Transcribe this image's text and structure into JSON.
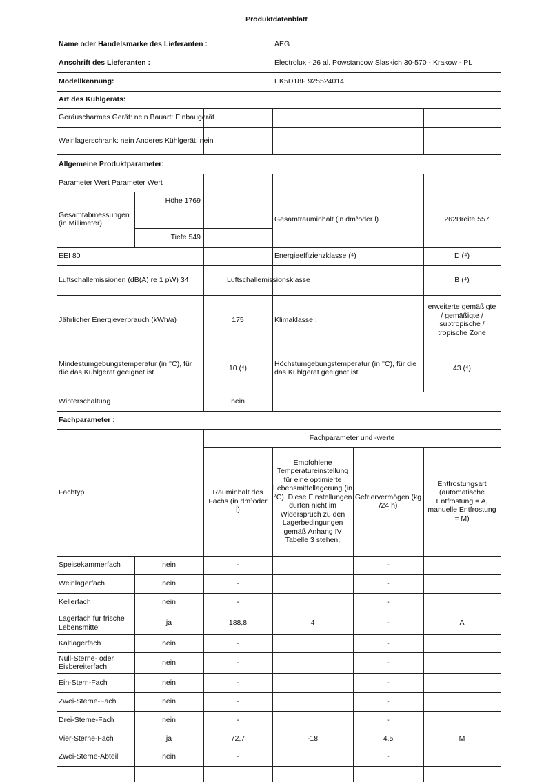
{
  "title": "Produktdatenblatt",
  "supplier": {
    "name_label": "Name oder Handelsmarke des Lieferanten :",
    "name_value": "AEG",
    "address_label": "Anschrift des Lieferanten :",
    "address_value": "Electrolux - 26 al. Powstancow Slaskich 30-570 - Krakow - PL",
    "model_label": "Modellkennung:",
    "model_value": "EK5D18F 925524014"
  },
  "type": {
    "section": "Art des Kühlgeräts:",
    "row1": "Geräuscharmes Gerät: nein Bauart: Einbaugerät",
    "row2": "Weinlagerschrank: nein Anderes Kühlgerät: nein"
  },
  "general": {
    "section": "Allgemeine Produktparameter:",
    "header": "Parameter Wert Parameter Wert",
    "dims_label": "Gesamtabmessungen (in Millimeter)",
    "height": "Höhe 1769",
    "depth": "Tiefe 549",
    "volume_label": "Gesamtrauminhalt (in dm³oder l)",
    "volume_value": "262Breite 557",
    "eei": "EEI 80",
    "eclass_label": "Energieeffizienzklasse (⁴)",
    "eclass_value": "D (⁴)",
    "noise": "Luftschallemissionen (dB(A) re 1 pW) 34",
    "noise_class_label": "Luftschallemissionsklasse",
    "noise_class_value": "B (⁴)",
    "energy_label": "Jährlicher Energieverbrauch (kWh/a)",
    "energy_value": "175",
    "climate_label": "Klimaklasse :",
    "climate_value": "erweiterte gemäßigte / gemäßigte / subtropische / tropische Zone",
    "min_temp_label": "Mindestumgebungstemperatur (in °C), für die das Kühlgerät geeignet ist",
    "min_temp_value": "10 (⁴)",
    "max_temp_label": "Höchstumgebungstemperatur (in °C), für die das Kühlgerät geeignet ist",
    "max_temp_value": "43 (⁴)",
    "winter_label": "Winterschaltung",
    "winter_value": "nein"
  },
  "compartments": {
    "section": "Fachparameter :",
    "group_header": "Fachparameter und -werte",
    "col_type": "Fachtyp",
    "col_volume": "Rauminhalt des Fachs (in dm³oder l)",
    "col_temp": "Empfohlene Temperatureinstellung für eine optimierte Lebensmittellagerung (in °C). Diese Einstellungen dürfen nicht im Widerspruch zu den Lagerbedingungen gemäß Anhang IV Tabelle 3 stehen;",
    "col_freeze": "Gefriervermögen (kg /24 h)",
    "col_defrost": "Entfrostungsart (automatische Entfrostung = A, manuelle Entfrostung = M)",
    "rows": [
      {
        "name": "Speisekammerfach",
        "present": "nein",
        "volume": "-",
        "temp": "",
        "freeze": "-",
        "defrost": ""
      },
      {
        "name": "Weinlagerfach",
        "present": "nein",
        "volume": "-",
        "temp": "",
        "freeze": "-",
        "defrost": ""
      },
      {
        "name": "Kellerfach",
        "present": "nein",
        "volume": "-",
        "temp": "",
        "freeze": "-",
        "defrost": ""
      },
      {
        "name": "Lagerfach für frische Lebensmittel",
        "present": "ja",
        "volume": "188,8",
        "temp": "4",
        "freeze": "-",
        "defrost": "A"
      },
      {
        "name": "Kaltlagerfach",
        "present": "nein",
        "volume": "-",
        "temp": "",
        "freeze": "-",
        "defrost": ""
      },
      {
        "name": "Null-Sterne- oder Eisbereiterfach",
        "present": "nein",
        "volume": "-",
        "temp": "",
        "freeze": "-",
        "defrost": ""
      },
      {
        "name": "Ein-Stern-Fach",
        "present": "nein",
        "volume": "-",
        "temp": "",
        "freeze": "-",
        "defrost": ""
      },
      {
        "name": "Zwei-Sterne-Fach",
        "present": "nein",
        "volume": "-",
        "temp": "",
        "freeze": "-",
        "defrost": ""
      },
      {
        "name": "Drei-Sterne-Fach",
        "present": "nein",
        "volume": "-",
        "temp": "",
        "freeze": "-",
        "defrost": ""
      },
      {
        "name": "Vier-Sterne-Fach",
        "present": "ja",
        "volume": "72,7",
        "temp": "-18",
        "freeze": "4,5",
        "defrost": "M"
      },
      {
        "name": "Zwei-Sterne-Abteil",
        "present": "nein",
        "volume": "-",
        "temp": "",
        "freeze": "-",
        "defrost": ""
      }
    ]
  }
}
